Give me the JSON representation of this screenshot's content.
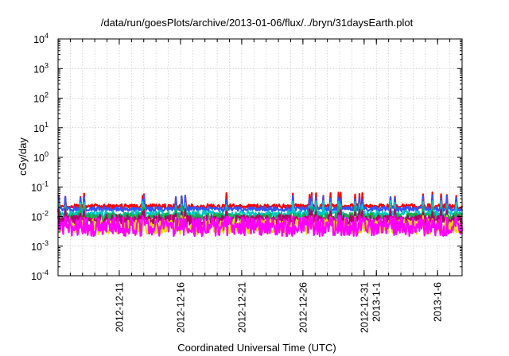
{
  "chart_data": {
    "type": "line",
    "title": "/data/run/goesPlots/archive/2013-01-06/flux/../bryn/31daysEarth.plot",
    "xlabel": "Coordinated Universal Time (UTC)",
    "ylabel": "cGy/day",
    "yscale": "log",
    "ylim": [
      0.0001,
      10000
    ],
    "xlim": [
      "2012-12-06",
      "2013-01-08"
    ],
    "grid": true,
    "legend": "none",
    "x_ticks": [
      "2012-12-11",
      "2012-12-16",
      "2012-12-21",
      "2012-12-26",
      "2012-12-31",
      "2013-1-1",
      "2013-1-6"
    ],
    "y_ticks": [
      {
        "base": "10",
        "exp": "-4",
        "value": 0.0001
      },
      {
        "base": "10",
        "exp": "-3",
        "value": 0.001
      },
      {
        "base": "10",
        "exp": "-2",
        "value": 0.01
      },
      {
        "base": "10",
        "exp": "-1",
        "value": 0.1
      },
      {
        "base": "10",
        "exp": "0",
        "value": 1
      },
      {
        "base": "10",
        "exp": "1",
        "value": 10
      },
      {
        "base": "10",
        "exp": "2",
        "value": 100
      },
      {
        "base": "10",
        "exp": "3",
        "value": 1000
      },
      {
        "base": "10",
        "exp": "4",
        "value": 10000
      }
    ],
    "series": [
      {
        "color": "#ff0000",
        "base": 0.022,
        "noise": 0.08,
        "spike": 0.055,
        "spike_rate": 0.05
      },
      {
        "color": "#3355ff",
        "base": 0.018,
        "noise": 0.08,
        "spike": 0.045,
        "spike_rate": 0.05
      },
      {
        "color": "#00c8c8",
        "base": 0.012,
        "noise": 0.12,
        "spike": 0.028,
        "spike_rate": 0.05
      },
      {
        "color": "#1aa84a",
        "base": 0.0095,
        "noise": 0.14,
        "spike": 0.02,
        "spike_rate": 0.04
      },
      {
        "color": "#b0006a",
        "base": 0.0075,
        "noise": 0.18,
        "spike": 0.015,
        "spike_rate": 0.04
      },
      {
        "color": "#e8d800",
        "base": 0.0045,
        "noise": 0.25,
        "spike": 0.009,
        "spike_rate": 0.04
      },
      {
        "color": "#ff00ff",
        "base": 0.0045,
        "noise": 0.32,
        "spike": 0.009,
        "spike_rate": 0.06
      }
    ]
  }
}
